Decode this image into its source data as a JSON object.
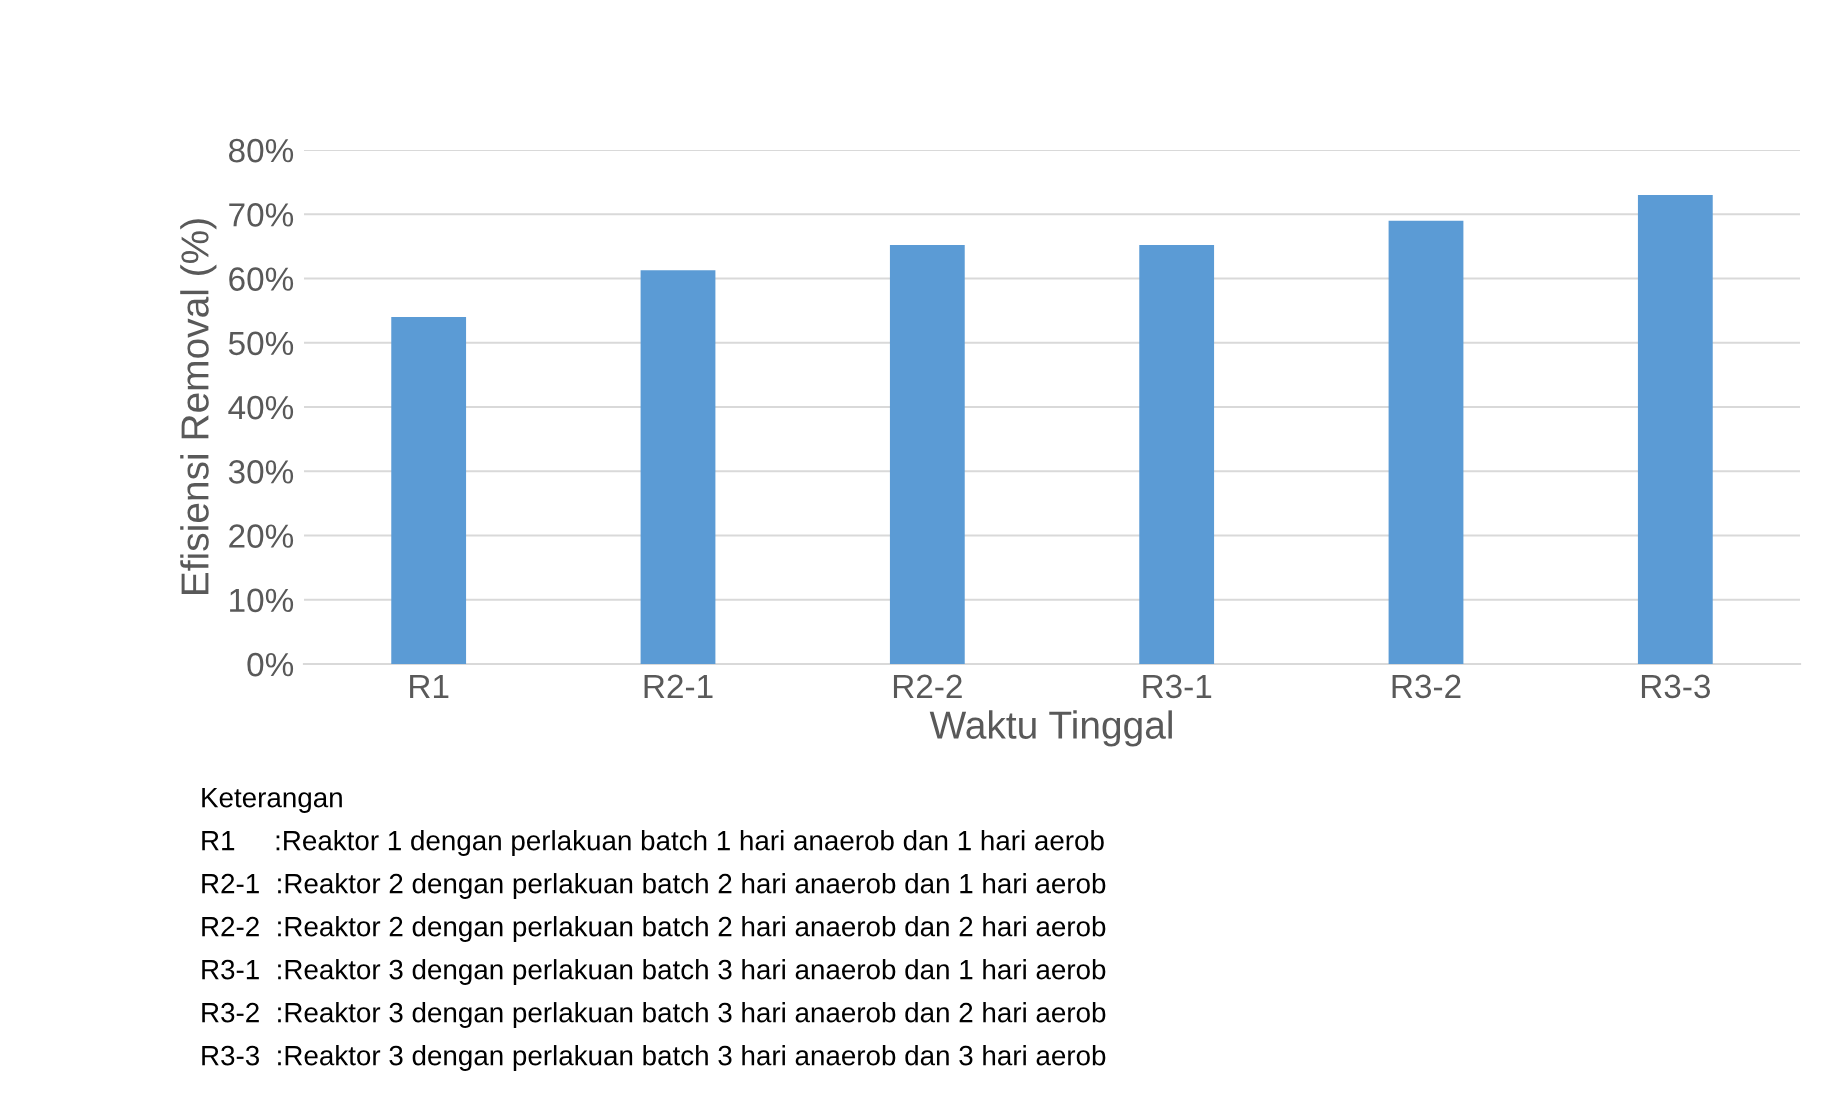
{
  "chart_data": {
    "type": "bar",
    "xlabel": "Waktu Tinggal",
    "ylabel": "Efisiensi Removal (%)",
    "categories": [
      "R1",
      "R2-1",
      "R2-2",
      "R3-1",
      "R3-2",
      "R3-3"
    ],
    "values": [
      54,
      61.3,
      65.2,
      65.2,
      69,
      73
    ],
    "color": "#5b9bd5",
    "ylim": [
      0,
      80
    ],
    "yticks": [
      {
        "value": 0,
        "label": "0%"
      },
      {
        "value": 10,
        "label": "10%"
      },
      {
        "value": 20,
        "label": "20%"
      },
      {
        "value": 30,
        "label": "30%"
      },
      {
        "value": 40,
        "label": "40%"
      },
      {
        "value": 50,
        "label": "50%"
      },
      {
        "value": 60,
        "label": "60%"
      },
      {
        "value": 70,
        "label": "70%"
      },
      {
        "value": 80,
        "label": "80%"
      }
    ],
    "grid": "y",
    "annotations": [
      "Keterangan",
      "R1     :Reaktor 1 dengan perlakuan batch 1 hari anaerob dan 1 hari aerob",
      "R2-1  :Reaktor 2 dengan perlakuan batch 2 hari anaerob dan 1 hari aerob",
      "R2-2  :Reaktor 2 dengan perlakuan batch 2 hari anaerob dan 2 hari aerob",
      "R3-1  :Reaktor 3 dengan perlakuan batch 3 hari anaerob dan 1 hari aerob",
      "R3-2  :Reaktor 3 dengan perlakuan batch 3 hari anaerob dan 2 hari aerob",
      "R3-3  :Reaktor 3 dengan perlakuan batch 3 hari anaerob dan 3 hari aerob"
    ]
  }
}
